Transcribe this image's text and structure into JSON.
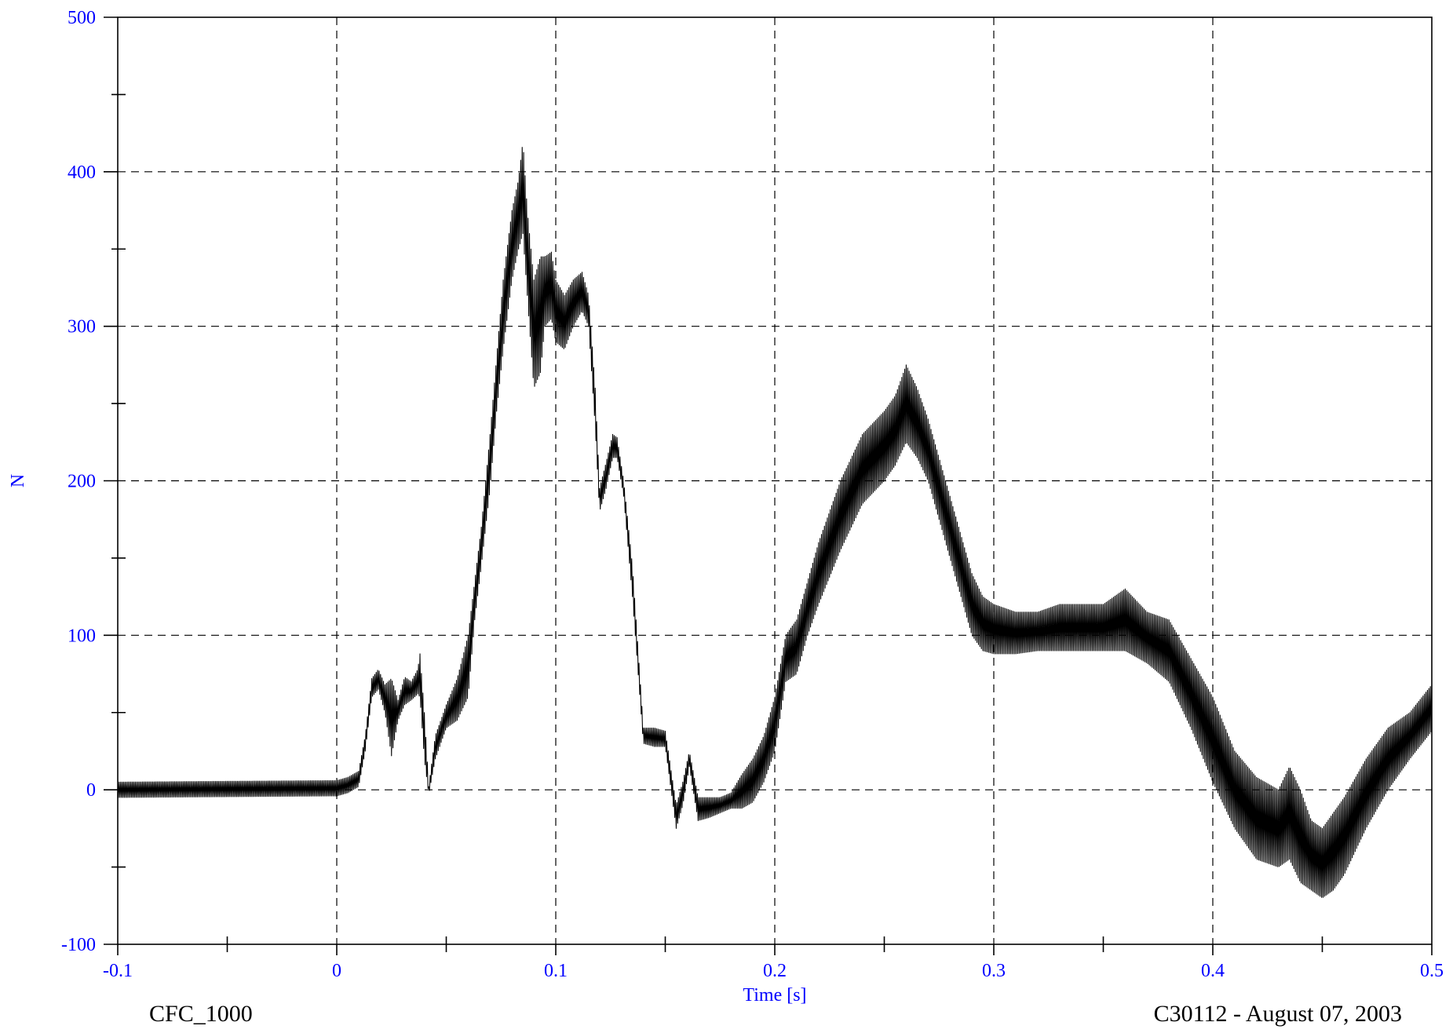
{
  "chart_data": {
    "type": "line",
    "title": "",
    "xlabel": "Time [s]",
    "ylabel": "N",
    "xlim": [
      -0.1,
      0.5
    ],
    "ylim": [
      -100,
      500
    ],
    "x_ticks": [
      -0.1,
      0,
      0.1,
      0.2,
      0.3,
      0.4,
      0.5
    ],
    "x_tick_labels": [
      "-0.1",
      "0",
      "0.1",
      "0.2",
      "0.3",
      "0.4",
      "0.5"
    ],
    "y_ticks": [
      -100,
      0,
      100,
      200,
      300,
      400,
      500
    ],
    "y_tick_labels": [
      "-100",
      "0",
      "100",
      "200",
      "300",
      "400",
      "500"
    ],
    "grid": true,
    "legend": "none",
    "series": [
      {
        "color": "#000000",
        "upper": [
          [
            -0.1,
            5
          ],
          [
            0,
            6
          ],
          [
            0.005,
            8
          ],
          [
            0.01,
            12
          ],
          [
            0.013,
            35
          ],
          [
            0.016,
            72
          ],
          [
            0.019,
            78
          ],
          [
            0.022,
            68
          ],
          [
            0.025,
            72
          ],
          [
            0.028,
            58
          ],
          [
            0.031,
            73
          ],
          [
            0.034,
            70
          ],
          [
            0.037,
            78
          ],
          [
            0.038,
            88
          ],
          [
            0.04,
            50
          ],
          [
            0.042,
            2
          ],
          [
            0.045,
            35
          ],
          [
            0.05,
            55
          ],
          [
            0.055,
            72
          ],
          [
            0.06,
            100
          ],
          [
            0.063,
            135
          ],
          [
            0.066,
            170
          ],
          [
            0.07,
            230
          ],
          [
            0.073,
            280
          ],
          [
            0.076,
            330
          ],
          [
            0.08,
            375
          ],
          [
            0.083,
            395
          ],
          [
            0.085,
            420
          ],
          [
            0.087,
            375
          ],
          [
            0.09,
            330
          ],
          [
            0.093,
            345
          ],
          [
            0.095,
            345
          ],
          [
            0.098,
            348
          ],
          [
            0.1,
            330
          ],
          [
            0.104,
            320
          ],
          [
            0.108,
            330
          ],
          [
            0.112,
            335
          ],
          [
            0.115,
            320
          ],
          [
            0.118,
            260
          ],
          [
            0.12,
            195
          ],
          [
            0.123,
            212
          ],
          [
            0.126,
            230
          ],
          [
            0.128,
            228
          ],
          [
            0.131,
            200
          ],
          [
            0.135,
            145
          ],
          [
            0.14,
            40
          ],
          [
            0.145,
            40
          ],
          [
            0.15,
            38
          ],
          [
            0.155,
            -10
          ],
          [
            0.158,
            5
          ],
          [
            0.161,
            25
          ],
          [
            0.165,
            -5
          ],
          [
            0.17,
            -5
          ],
          [
            0.175,
            -5
          ],
          [
            0.18,
            -2
          ],
          [
            0.185,
            10
          ],
          [
            0.19,
            20
          ],
          [
            0.195,
            35
          ],
          [
            0.2,
            60
          ],
          [
            0.205,
            100
          ],
          [
            0.21,
            110
          ],
          [
            0.215,
            135
          ],
          [
            0.22,
            160
          ],
          [
            0.23,
            200
          ],
          [
            0.24,
            230
          ],
          [
            0.25,
            245
          ],
          [
            0.255,
            255
          ],
          [
            0.26,
            275
          ],
          [
            0.265,
            260
          ],
          [
            0.27,
            240
          ],
          [
            0.275,
            215
          ],
          [
            0.28,
            190
          ],
          [
            0.285,
            165
          ],
          [
            0.29,
            140
          ],
          [
            0.295,
            125
          ],
          [
            0.3,
            120
          ],
          [
            0.31,
            115
          ],
          [
            0.32,
            115
          ],
          [
            0.33,
            120
          ],
          [
            0.34,
            120
          ],
          [
            0.35,
            120
          ],
          [
            0.36,
            130
          ],
          [
            0.37,
            115
          ],
          [
            0.38,
            110
          ],
          [
            0.39,
            85
          ],
          [
            0.4,
            60
          ],
          [
            0.41,
            25
          ],
          [
            0.42,
            8
          ],
          [
            0.43,
            0
          ],
          [
            0.435,
            15
          ],
          [
            0.44,
            0
          ],
          [
            0.445,
            -20
          ],
          [
            0.45,
            -25
          ],
          [
            0.455,
            -15
          ],
          [
            0.46,
            -5
          ],
          [
            0.47,
            20
          ],
          [
            0.48,
            40
          ],
          [
            0.49,
            50
          ],
          [
            0.5,
            68
          ]
        ],
        "lower": [
          [
            -0.1,
            -5
          ],
          [
            0,
            -4
          ],
          [
            0.005,
            -2
          ],
          [
            0.01,
            2
          ],
          [
            0.013,
            25
          ],
          [
            0.016,
            60
          ],
          [
            0.019,
            65
          ],
          [
            0.022,
            50
          ],
          [
            0.025,
            22
          ],
          [
            0.028,
            45
          ],
          [
            0.031,
            55
          ],
          [
            0.034,
            58
          ],
          [
            0.037,
            62
          ],
          [
            0.038,
            60
          ],
          [
            0.04,
            20
          ],
          [
            0.042,
            -3
          ],
          [
            0.045,
            20
          ],
          [
            0.05,
            40
          ],
          [
            0.055,
            45
          ],
          [
            0.06,
            60
          ],
          [
            0.063,
            110
          ],
          [
            0.066,
            145
          ],
          [
            0.07,
            195
          ],
          [
            0.073,
            245
          ],
          [
            0.076,
            285
          ],
          [
            0.08,
            330
          ],
          [
            0.083,
            350
          ],
          [
            0.085,
            360
          ],
          [
            0.087,
            320
          ],
          [
            0.09,
            260
          ],
          [
            0.093,
            270
          ],
          [
            0.095,
            300
          ],
          [
            0.098,
            305
          ],
          [
            0.1,
            290
          ],
          [
            0.104,
            285
          ],
          [
            0.108,
            300
          ],
          [
            0.112,
            310
          ],
          [
            0.115,
            300
          ],
          [
            0.118,
            235
          ],
          [
            0.12,
            180
          ],
          [
            0.123,
            195
          ],
          [
            0.126,
            215
          ],
          [
            0.128,
            215
          ],
          [
            0.131,
            190
          ],
          [
            0.135,
            125
          ],
          [
            0.14,
            30
          ],
          [
            0.145,
            28
          ],
          [
            0.15,
            28
          ],
          [
            0.155,
            -25
          ],
          [
            0.158,
            -10
          ],
          [
            0.161,
            15
          ],
          [
            0.165,
            -20
          ],
          [
            0.17,
            -18
          ],
          [
            0.175,
            -15
          ],
          [
            0.18,
            -12
          ],
          [
            0.185,
            -12
          ],
          [
            0.19,
            -8
          ],
          [
            0.195,
            5
          ],
          [
            0.2,
            25
          ],
          [
            0.205,
            70
          ],
          [
            0.21,
            75
          ],
          [
            0.215,
            100
          ],
          [
            0.22,
            120
          ],
          [
            0.23,
            155
          ],
          [
            0.24,
            185
          ],
          [
            0.25,
            200
          ],
          [
            0.255,
            210
          ],
          [
            0.26,
            225
          ],
          [
            0.265,
            215
          ],
          [
            0.27,
            200
          ],
          [
            0.275,
            175
          ],
          [
            0.28,
            150
          ],
          [
            0.285,
            125
          ],
          [
            0.29,
            100
          ],
          [
            0.295,
            90
          ],
          [
            0.3,
            88
          ],
          [
            0.31,
            88
          ],
          [
            0.32,
            90
          ],
          [
            0.33,
            90
          ],
          [
            0.34,
            90
          ],
          [
            0.35,
            90
          ],
          [
            0.36,
            90
          ],
          [
            0.37,
            82
          ],
          [
            0.38,
            70
          ],
          [
            0.39,
            40
          ],
          [
            0.4,
            5
          ],
          [
            0.41,
            -25
          ],
          [
            0.42,
            -45
          ],
          [
            0.43,
            -50
          ],
          [
            0.435,
            -45
          ],
          [
            0.44,
            -60
          ],
          [
            0.445,
            -65
          ],
          [
            0.45,
            -70
          ],
          [
            0.455,
            -65
          ],
          [
            0.46,
            -55
          ],
          [
            0.47,
            -25
          ],
          [
            0.48,
            0
          ],
          [
            0.49,
            20
          ],
          [
            0.5,
            38
          ]
        ]
      }
    ],
    "annotations": {
      "filter": "CFC_1000",
      "test": "C30112 - August 07, 2003"
    }
  },
  "colors": {
    "axis_labels": "#0000ff",
    "plot_line": "#000000",
    "grid": "#000000",
    "background": "#ffffff"
  }
}
